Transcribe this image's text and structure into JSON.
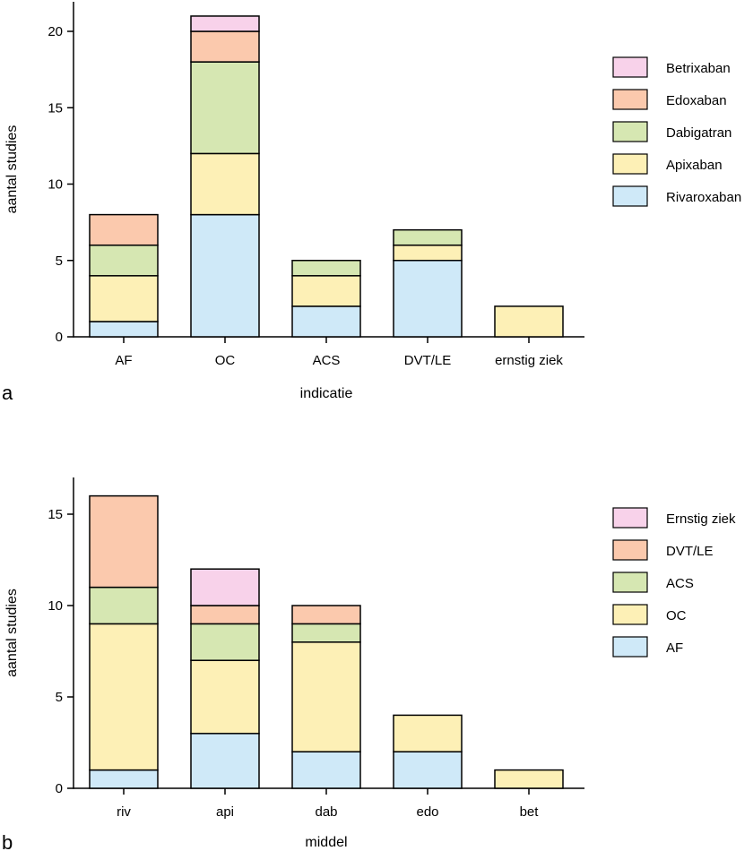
{
  "colors": {
    "blue": "#cfe9f8",
    "yellow": "#fdf0b6",
    "green": "#d6e7b2",
    "orange": "#fbc9ad",
    "pink": "#f8d2ea"
  },
  "chart_data": [
    {
      "type": "bar",
      "stacked": true,
      "panel_letter": "a",
      "categories": [
        "AF",
        "OC",
        "ACS",
        "DVT/LE",
        "ernstig ziek"
      ],
      "xlabel": "indicatie",
      "ylabel": "aantal studies",
      "ylim": [
        0,
        22
      ],
      "yticks": [
        0,
        5,
        10,
        15,
        20
      ],
      "legend_position": "right",
      "series": [
        {
          "name": "Rivaroxaban",
          "color": "blue",
          "values": [
            1,
            8,
            2,
            5,
            0
          ]
        },
        {
          "name": "Apixaban",
          "color": "yellow",
          "values": [
            3,
            4,
            2,
            1,
            2
          ]
        },
        {
          "name": "Dabigatran",
          "color": "green",
          "values": [
            2,
            6,
            1,
            1,
            0
          ]
        },
        {
          "name": "Edoxaban",
          "color": "orange",
          "values": [
            2,
            2,
            0,
            0,
            0
          ]
        },
        {
          "name": "Betrixaban",
          "color": "pink",
          "values": [
            0,
            1,
            0,
            0,
            0
          ]
        }
      ]
    },
    {
      "type": "bar",
      "stacked": true,
      "panel_letter": "b",
      "categories": [
        "riv",
        "api",
        "dab",
        "edo",
        "bet"
      ],
      "xlabel": "middel",
      "ylabel": "aantal studies",
      "ylim": [
        0,
        17
      ],
      "yticks": [
        0,
        5,
        10,
        15
      ],
      "legend_position": "right",
      "series": [
        {
          "name": "AF",
          "color": "blue",
          "values": [
            1,
            3,
            2,
            2,
            0
          ]
        },
        {
          "name": "OC",
          "color": "yellow",
          "values": [
            8,
            4,
            6,
            2,
            1
          ]
        },
        {
          "name": "ACS",
          "color": "green",
          "values": [
            2,
            2,
            1,
            0,
            0
          ]
        },
        {
          "name": "DVT/LE",
          "color": "orange",
          "values": [
            5,
            1,
            1,
            0,
            0
          ]
        },
        {
          "name": "Ernstig ziek",
          "color": "pink",
          "values": [
            0,
            2,
            0,
            0,
            0
          ]
        }
      ]
    }
  ]
}
